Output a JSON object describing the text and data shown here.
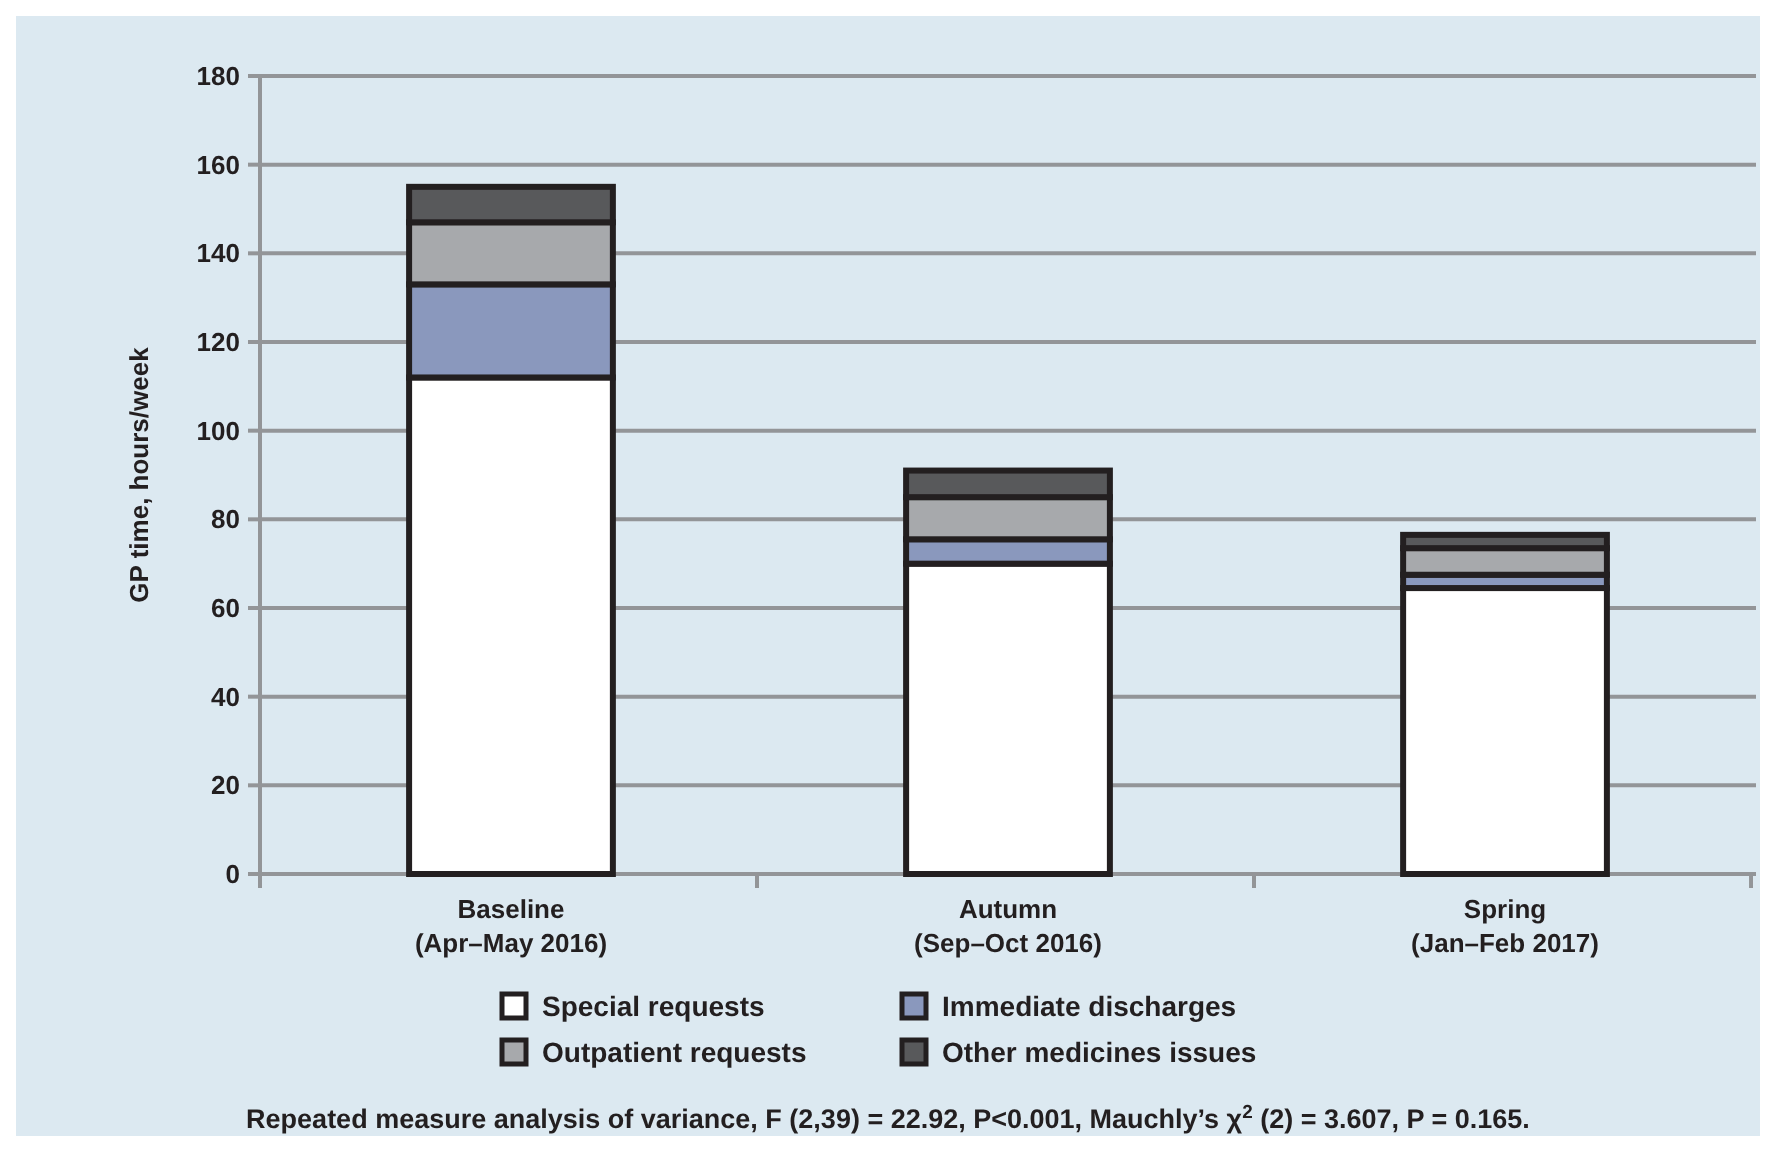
{
  "chart_data": {
    "type": "bar",
    "stacked": true,
    "ylabel": "GP time, hours/week",
    "categories": [
      "Baseline\n(Apr–May 2016)",
      "Autumn\n(Sep–Oct 2016)",
      "Spring\n(Jan–Feb 2017)"
    ],
    "series": [
      {
        "name": "Special requests",
        "color": "#ffffff",
        "values": [
          112,
          70,
          64.5
        ]
      },
      {
        "name": "Immediate discharges",
        "color": "#8a98bd",
        "values": [
          21,
          5.5,
          3
        ]
      },
      {
        "name": "Outpatient requests",
        "color": "#a7a9ac",
        "values": [
          14,
          9.5,
          6
        ]
      },
      {
        "name": "Other medicines issues",
        "color": "#58595b",
        "values": [
          8,
          6,
          3
        ]
      }
    ],
    "ylim": [
      0,
      180
    ],
    "yticks": [
      0,
      20,
      40,
      60,
      80,
      100,
      120,
      140,
      160,
      180
    ],
    "grid": "y",
    "legend": "bottom",
    "annotations": [
      "Repeated measure analysis of variance, F (2,39) = 22.92, P<0.001, Mauchly’s χ$^{2}$ (2) = 3.607, P = 0.165."
    ]
  }
}
